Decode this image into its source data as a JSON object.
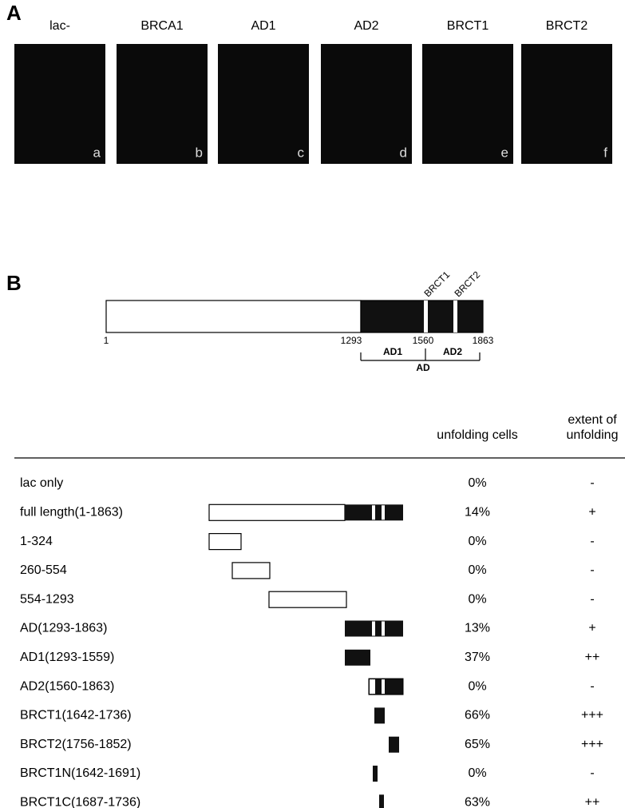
{
  "panel_a": {
    "label": "A",
    "images": [
      {
        "title": "lac-",
        "letter": "a"
      },
      {
        "title": "BRCA1",
        "letter": "b"
      },
      {
        "title": "AD1",
        "letter": "c"
      },
      {
        "title": "AD2",
        "letter": "d"
      },
      {
        "title": "BRCT1",
        "letter": "e"
      },
      {
        "title": "BRCT2",
        "letter": "f"
      }
    ]
  },
  "panel_b": {
    "label": "B",
    "diagram": {
      "positions": [
        "1",
        "1293",
        "1560",
        "1863"
      ],
      "domains": [
        "BRCT1",
        "BRCT2"
      ],
      "regions": [
        "AD1",
        "AD2"
      ],
      "region_all": "AD"
    },
    "table": {
      "headers": [
        [
          "unfolding cells"
        ],
        [
          "extent of",
          "unfolding"
        ]
      ],
      "rows": [
        [
          "lac only",
          "0%",
          "-"
        ],
        [
          "full length(1-1863)",
          "14%",
          "+"
        ],
        [
          "1-324",
          "0%",
          "-"
        ],
        [
          "260-554",
          "0%",
          "-"
        ],
        [
          "554-1293",
          "0%",
          "-"
        ],
        [
          "AD(1293-1863)",
          "13%",
          "+"
        ],
        [
          "AD1(1293-1559)",
          "37%",
          "++"
        ],
        [
          "AD2(1560-1863)",
          "0%",
          "-"
        ],
        [
          "BRCT1(1642-1736)",
          "66%",
          "+++"
        ],
        [
          "BRCT2(1756-1852)",
          "65%",
          "+++"
        ],
        [
          "BRCT1N(1642-1691)",
          "0%",
          "-"
        ],
        [
          "BRCT1C(1687-1736)",
          "63%",
          "++"
        ]
      ]
    }
  }
}
